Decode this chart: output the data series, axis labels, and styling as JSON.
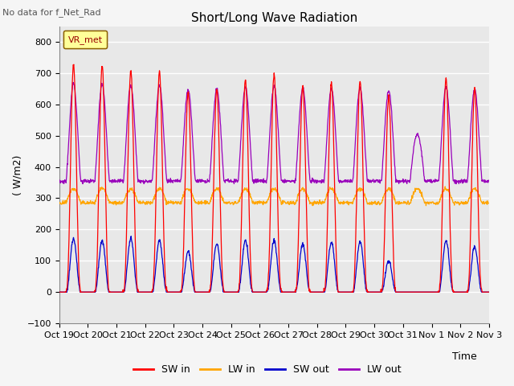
{
  "title": "Short/Long Wave Radiation",
  "xlabel": "Time",
  "ylabel": "( W/m2)",
  "ylim": [
    -100,
    850
  ],
  "yticks": [
    -100,
    0,
    100,
    200,
    300,
    400,
    500,
    600,
    700,
    800
  ],
  "top_left_text": "No data for f_Net_Rad",
  "legend_label": "VR_met",
  "legend_entries": [
    "SW in",
    "LW in",
    "SW out",
    "LW out"
  ],
  "legend_colors": [
    "#ff0000",
    "#ffa500",
    "#0000cc",
    "#9900bb"
  ],
  "bg_color": "#e8e8e8",
  "fig_color": "#f5f5f5",
  "grid_color": "#ffffff",
  "start_day": 19,
  "n_days": 15,
  "dt_hours": 0.25,
  "sw_in_peaks": [
    730,
    725,
    710,
    705,
    640,
    650,
    680,
    695,
    660,
    670,
    675,
    625,
    0,
    685,
    650
  ],
  "lw_in_base": 285,
  "lw_in_amp": 45,
  "sw_out_peaks": [
    170,
    165,
    170,
    165,
    130,
    155,
    165,
    165,
    155,
    160,
    160,
    100,
    0,
    165,
    145
  ],
  "lw_out_base": 355,
  "lw_out_amp": 150,
  "lw_out_night": 355
}
